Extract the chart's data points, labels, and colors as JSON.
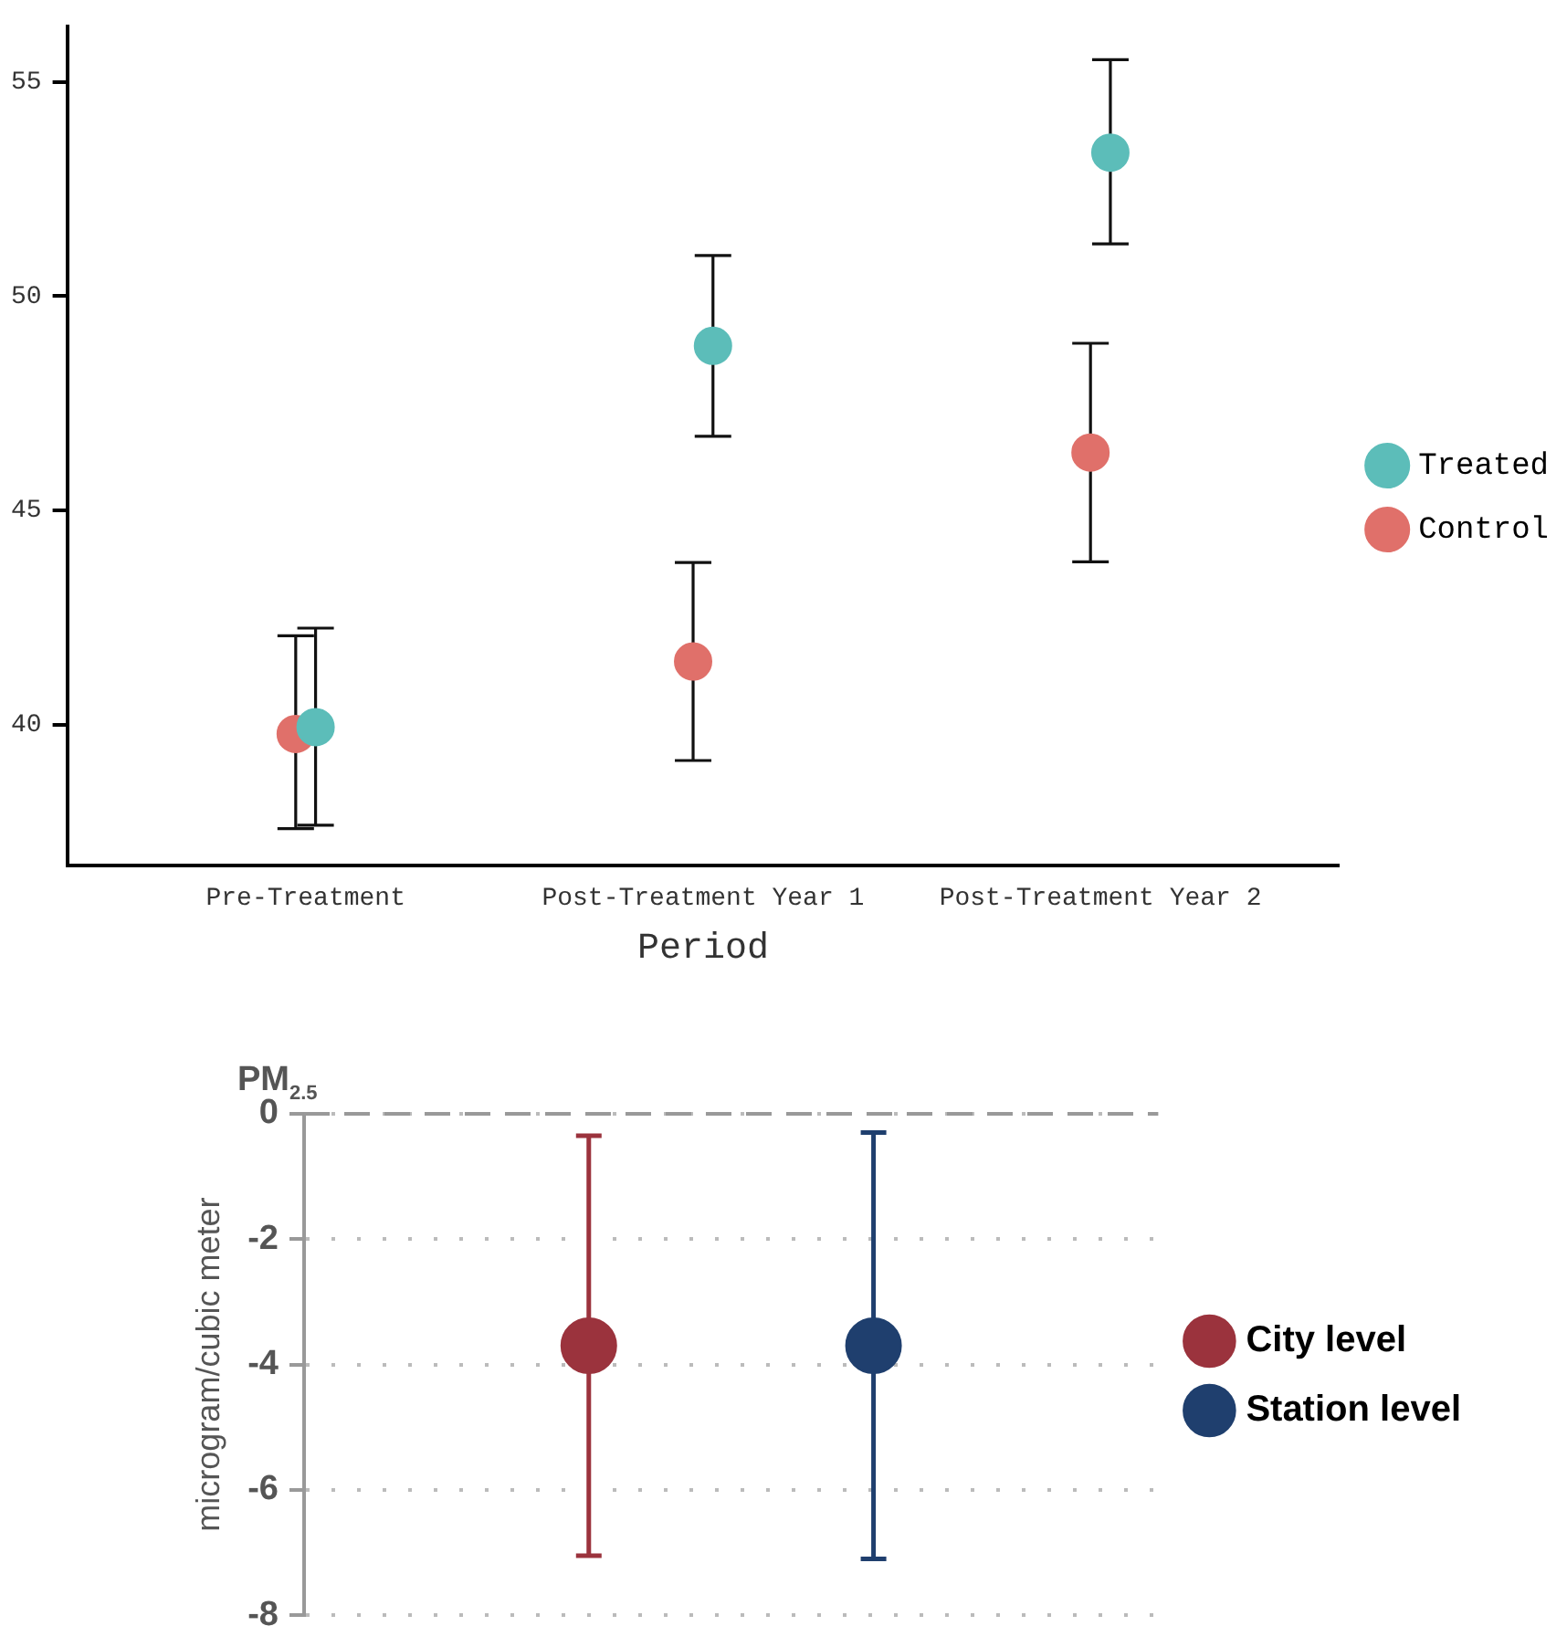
{
  "chart_data": [
    {
      "type": "scatter",
      "xlabel": "Period",
      "categories": [
        "Pre-Treatment",
        "Post-Treatment Year 1",
        "Post-Treatment Year 2"
      ],
      "series": [
        {
          "name": "Treated",
          "color": "#5cbdb9",
          "values": [
            39.94,
            48.84,
            53.35
          ],
          "errors": [
            [
              37.65,
              42.25
            ],
            [
              46.73,
              50.95
            ],
            [
              51.22,
              55.52
            ]
          ]
        },
        {
          "name": "Control",
          "color": "#e0706a",
          "values": [
            39.78,
            41.47,
            46.35
          ],
          "errors": [
            [
              37.57,
              42.07
            ],
            [
              39.16,
              43.78
            ],
            [
              43.8,
              48.9
            ]
          ]
        }
      ],
      "ylim": [
        36.7,
        56.3
      ],
      "yticks": [
        40,
        45,
        50,
        55
      ],
      "grid": false,
      "legend": "right",
      "marker": "circle"
    },
    {
      "type": "scatter",
      "title": "PM$_{2.5}$",
      "ylabel": "microgram/cubic meter",
      "categories": [
        null,
        null
      ],
      "series": [
        {
          "name": "City level",
          "color": "#9b333d",
          "values": [
            -3.7,
            null
          ],
          "errors": [
            [
              -7.05,
              -0.35
            ],
            null
          ]
        },
        {
          "name": "Station level",
          "color": "#1f3f6e",
          "values": [
            null,
            -3.7
          ],
          "errors": [
            null,
            [
              -7.1,
              -0.3
            ]
          ]
        }
      ],
      "ylim": [
        -8,
        0
      ],
      "yticks": [
        0,
        -2,
        -4,
        -6,
        -8
      ],
      "grid": "y",
      "legend": "right",
      "marker": "circle",
      "tick_labels": "y",
      "ref_lines": [
        {
          "axis": "y",
          "value": 0,
          "color": "#999999",
          "line_style": "dashed"
        }
      ]
    }
  ]
}
